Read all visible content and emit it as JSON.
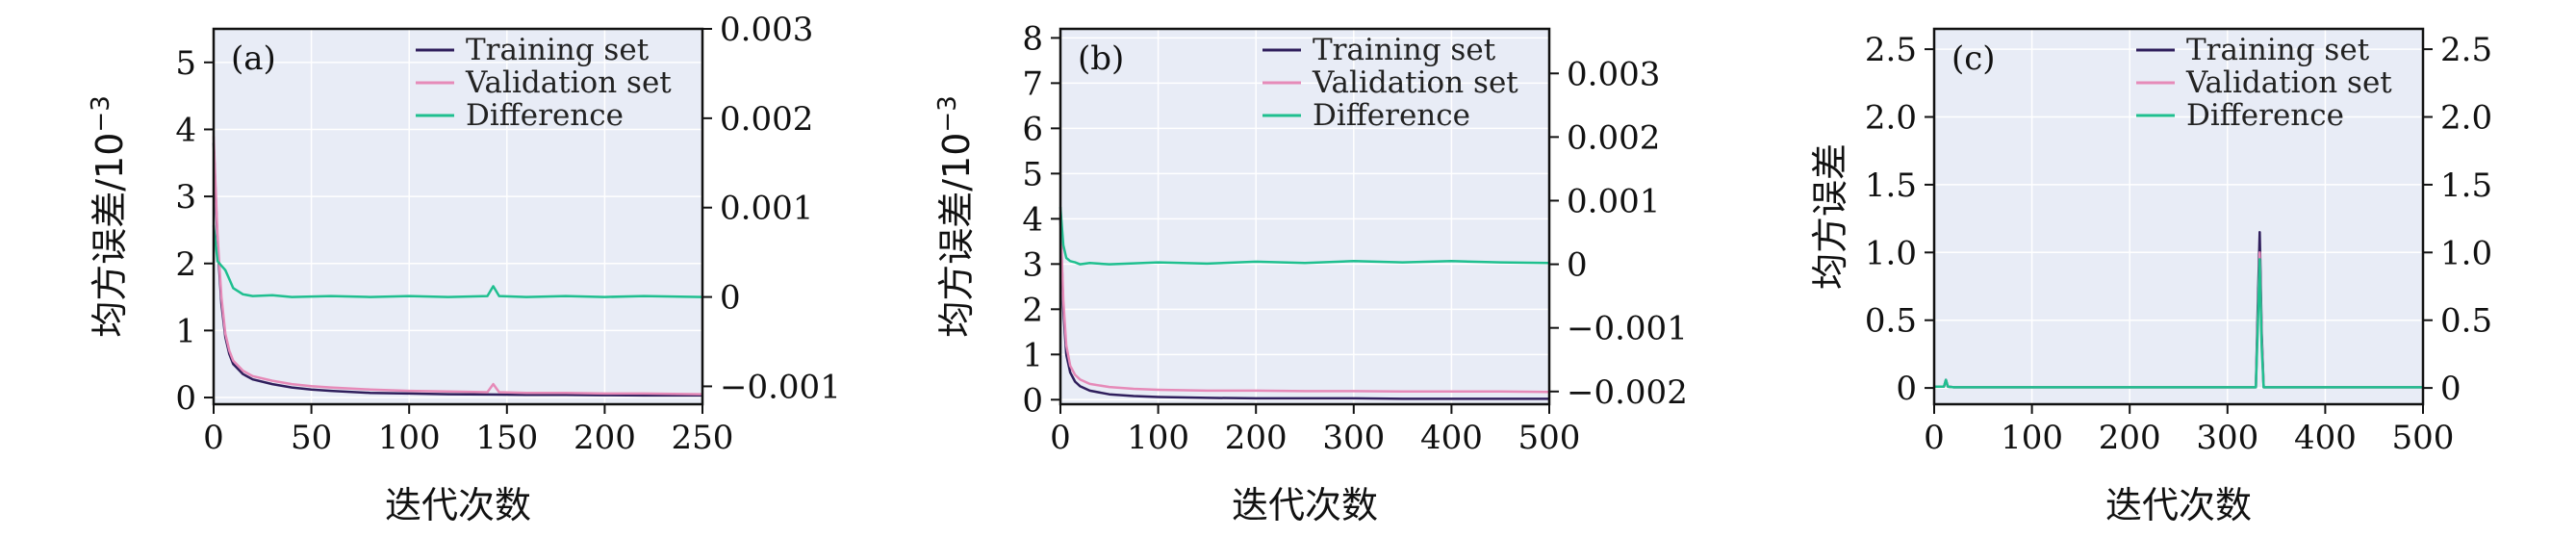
{
  "colors": {
    "training": "#2f1e5c",
    "validation": "#e68ab8",
    "difference": "#1fbf8f",
    "plot_bg": "#e8ecf6",
    "grid": "#ffffff",
    "frame": "#111111"
  },
  "chart_data": [
    {
      "type": "line",
      "panel_label": "(a)",
      "xlabel": "迭代次数",
      "ylabel": "均方误差/10",
      "ylabel_exp": "−3",
      "xlim": [
        0,
        250
      ],
      "ylim": [
        -0.1,
        5.5
      ],
      "y2lim": [
        -0.0012,
        0.003
      ],
      "xticks": [
        "0",
        "50",
        "100",
        "150",
        "200",
        "250"
      ],
      "yticks": [
        "0",
        "1",
        "2",
        "3",
        "4",
        "5"
      ],
      "y2ticks": [
        "−0.001",
        "0",
        "0.001",
        "0.002",
        "0.003"
      ],
      "legend": [
        "Training set",
        "Validation set",
        "Difference"
      ],
      "legend_position": "top-right",
      "series": [
        {
          "name": "Training set",
          "x": [
            0,
            2,
            4,
            6,
            8,
            10,
            15,
            20,
            30,
            40,
            50,
            60,
            80,
            100,
            120,
            140,
            160,
            180,
            200,
            220,
            250
          ],
          "y": [
            3.8,
            2.3,
            1.4,
            0.9,
            0.65,
            0.5,
            0.35,
            0.27,
            0.2,
            0.15,
            0.12,
            0.1,
            0.07,
            0.06,
            0.05,
            0.045,
            0.04,
            0.04,
            0.035,
            0.03,
            0.03
          ]
        },
        {
          "name": "Validation set",
          "x": [
            0,
            2,
            4,
            6,
            8,
            10,
            15,
            20,
            30,
            40,
            50,
            60,
            80,
            100,
            120,
            140,
            143,
            146,
            160,
            180,
            200,
            220,
            250
          ],
          "y": [
            3.9,
            2.4,
            1.5,
            0.95,
            0.7,
            0.55,
            0.4,
            0.32,
            0.25,
            0.2,
            0.17,
            0.15,
            0.12,
            0.1,
            0.09,
            0.08,
            0.2,
            0.08,
            0.07,
            0.07,
            0.06,
            0.06,
            0.05
          ]
        },
        {
          "name": "Difference",
          "axis": "right",
          "x": [
            0,
            2,
            4,
            6,
            8,
            10,
            15,
            20,
            30,
            40,
            60,
            80,
            100,
            120,
            140,
            143,
            146,
            160,
            180,
            200,
            220,
            250
          ],
          "y": [
            0.0008,
            0.0004,
            0.00035,
            0.0003,
            0.0002,
            0.0001,
            3e-05,
            1e-05,
            2e-05,
            0.0,
            1e-05,
            0.0,
            1e-05,
            0.0,
            1e-05,
            0.00012,
            1e-05,
            0.0,
            1e-05,
            0.0,
            1e-05,
            0.0
          ]
        }
      ]
    },
    {
      "type": "line",
      "panel_label": "(b)",
      "xlabel": "迭代次数",
      "ylabel": "均方误差/10",
      "ylabel_exp": "−3",
      "xlim": [
        0,
        500
      ],
      "ylim": [
        -0.1,
        8.2
      ],
      "y2lim": [
        -0.0022,
        0.0037
      ],
      "xticks": [
        "0",
        "100",
        "200",
        "300",
        "400",
        "500"
      ],
      "yticks": [
        "0",
        "1",
        "2",
        "3",
        "4",
        "5",
        "6",
        "7",
        "8"
      ],
      "y2ticks": [
        "−0.002",
        "−0.001",
        "0",
        "0.001",
        "0.002",
        "0.003"
      ],
      "legend": [
        "Training set",
        "Validation set",
        "Difference"
      ],
      "legend_position": "top-right",
      "series": [
        {
          "name": "Training set",
          "x": [
            0,
            3,
            6,
            10,
            15,
            20,
            30,
            50,
            75,
            100,
            150,
            200,
            250,
            300,
            350,
            400,
            450,
            500
          ],
          "y": [
            4.0,
            2.0,
            1.0,
            0.6,
            0.4,
            0.3,
            0.2,
            0.12,
            0.08,
            0.06,
            0.04,
            0.03,
            0.03,
            0.03,
            0.02,
            0.02,
            0.02,
            0.02
          ]
        },
        {
          "name": "Validation set",
          "x": [
            0,
            3,
            6,
            10,
            15,
            20,
            30,
            50,
            75,
            100,
            150,
            200,
            250,
            300,
            350,
            400,
            450,
            500
          ],
          "y": [
            4.1,
            2.2,
            1.2,
            0.75,
            0.55,
            0.45,
            0.35,
            0.28,
            0.24,
            0.22,
            0.2,
            0.2,
            0.19,
            0.19,
            0.18,
            0.18,
            0.18,
            0.17
          ]
        },
        {
          "name": "Difference",
          "axis": "right",
          "x": [
            0,
            3,
            6,
            10,
            15,
            20,
            30,
            50,
            100,
            150,
            200,
            250,
            300,
            350,
            400,
            450,
            500
          ],
          "y": [
            0.0009,
            0.0003,
            0.0001,
            5e-05,
            3e-05,
            0.0,
            2e-05,
            0.0,
            3e-05,
            1e-05,
            4e-05,
            2e-05,
            5e-05,
            3e-05,
            5e-05,
            3e-05,
            2e-05
          ]
        }
      ]
    },
    {
      "type": "line",
      "panel_label": "(c)",
      "xlabel": "迭代次数",
      "ylabel": "均方误差",
      "xlim": [
        0,
        500
      ],
      "ylim": [
        -0.12,
        2.65
      ],
      "y2lim": [
        -0.12,
        2.65
      ],
      "xticks": [
        "0",
        "100",
        "200",
        "300",
        "400",
        "500"
      ],
      "yticks": [
        "0",
        "0.5",
        "1.0",
        "1.5",
        "2.0",
        "2.5"
      ],
      "y2ticks": [
        "0",
        "0.5",
        "1.0",
        "1.5",
        "2.0",
        "2.5"
      ],
      "legend": [
        "Training set",
        "Validation set",
        "Difference"
      ],
      "legend_position": "top-right",
      "series": [
        {
          "name": "Training set",
          "x": [
            0,
            10,
            12,
            14,
            20,
            100,
            200,
            300,
            329,
            331,
            333,
            335,
            337,
            340,
            400,
            500
          ],
          "y": [
            0.01,
            0.01,
            0.06,
            0.01,
            0.005,
            0.005,
            0.005,
            0.005,
            0.005,
            0.6,
            1.15,
            0.4,
            0.005,
            0.005,
            0.005,
            0.005
          ]
        },
        {
          "name": "Validation set",
          "x": [
            0,
            10,
            12,
            14,
            20,
            100,
            200,
            300,
            329,
            331,
            333,
            335,
            337,
            340,
            400,
            500
          ],
          "y": [
            0.01,
            0.01,
            0.05,
            0.01,
            0.005,
            0.005,
            0.005,
            0.005,
            0.005,
            0.5,
            1.0,
            0.35,
            0.005,
            0.005,
            0.005,
            0.005
          ]
        },
        {
          "name": "Difference",
          "axis": "right",
          "x": [
            0,
            10,
            12,
            14,
            20,
            100,
            200,
            300,
            329,
            331,
            333,
            335,
            337,
            340,
            400,
            500
          ],
          "y": [
            0.01,
            0.01,
            0.06,
            0.01,
            0.005,
            0.005,
            0.005,
            0.005,
            0.005,
            0.45,
            0.95,
            0.3,
            0.005,
            0.005,
            0.005,
            0.005
          ]
        }
      ]
    }
  ]
}
